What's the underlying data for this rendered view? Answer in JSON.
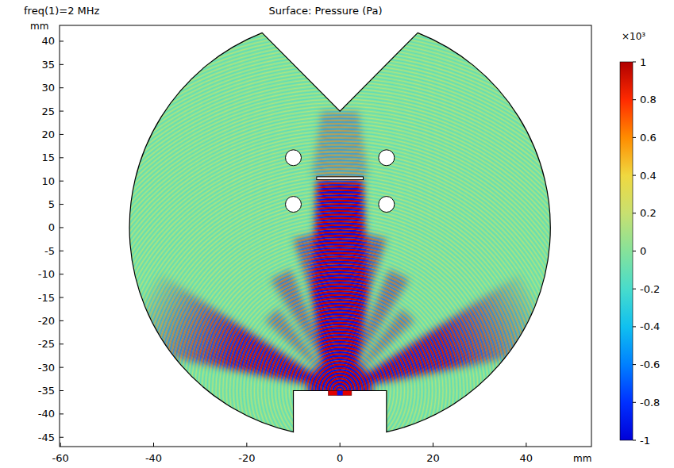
{
  "chart_data": {
    "type": "surface",
    "title": "Surface: Pressure (Pa)",
    "subtitle": "freq(1)=2 MHz",
    "x_label": "mm",
    "y_label": "mm",
    "xlim": [
      -60.2,
      54
    ],
    "ylim": [
      -47,
      43.4
    ],
    "xticks": [
      -60,
      -40,
      -20,
      0,
      20,
      40
    ],
    "yticks": [
      -45,
      -40,
      -35,
      -30,
      -25,
      -20,
      -15,
      -10,
      -5,
      0,
      5,
      10,
      15,
      20,
      25,
      30,
      35,
      40
    ],
    "grid": false,
    "geometry": {
      "domain_radius": 45,
      "notch_apex": [
        0,
        25
      ],
      "notch_edges": [
        [
          -16.7,
          41.8
        ],
        [
          16.7,
          41.8
        ]
      ],
      "cutout_x": [
        -10,
        10
      ],
      "cutout_top_y": -35,
      "holes": [
        {
          "x": -10,
          "y": 15,
          "r": 1.7
        },
        {
          "x": 10,
          "y": 15,
          "r": 1.7
        },
        {
          "x": -10,
          "y": 5,
          "r": 1.7
        },
        {
          "x": 10,
          "y": 5,
          "r": 1.7
        }
      ],
      "plate": {
        "x": [
          -5,
          5
        ],
        "y": [
          10.3,
          10.9
        ]
      },
      "source": {
        "x": [
          -2.5,
          2.5
        ],
        "y": [
          -36,
          -35
        ]
      }
    },
    "colorbar": {
      "lim": [
        -1000,
        1000
      ],
      "ticks": [
        {
          "value": 1000,
          "label": "1"
        },
        {
          "value": 800,
          "label": "0.8"
        },
        {
          "value": 600,
          "label": "0.6"
        },
        {
          "value": 400,
          "label": "0.4"
        },
        {
          "value": 200,
          "label": "0.2"
        },
        0,
        {
          "value": -200,
          "label": "-0.2"
        },
        {
          "value": -400,
          "label": "-0.4"
        },
        {
          "value": -600,
          "label": "-0.6"
        },
        {
          "value": -800,
          "label": "-0.8"
        },
        {
          "value": -1000,
          "label": "-1"
        }
      ],
      "multiplier": "×10³"
    }
  }
}
